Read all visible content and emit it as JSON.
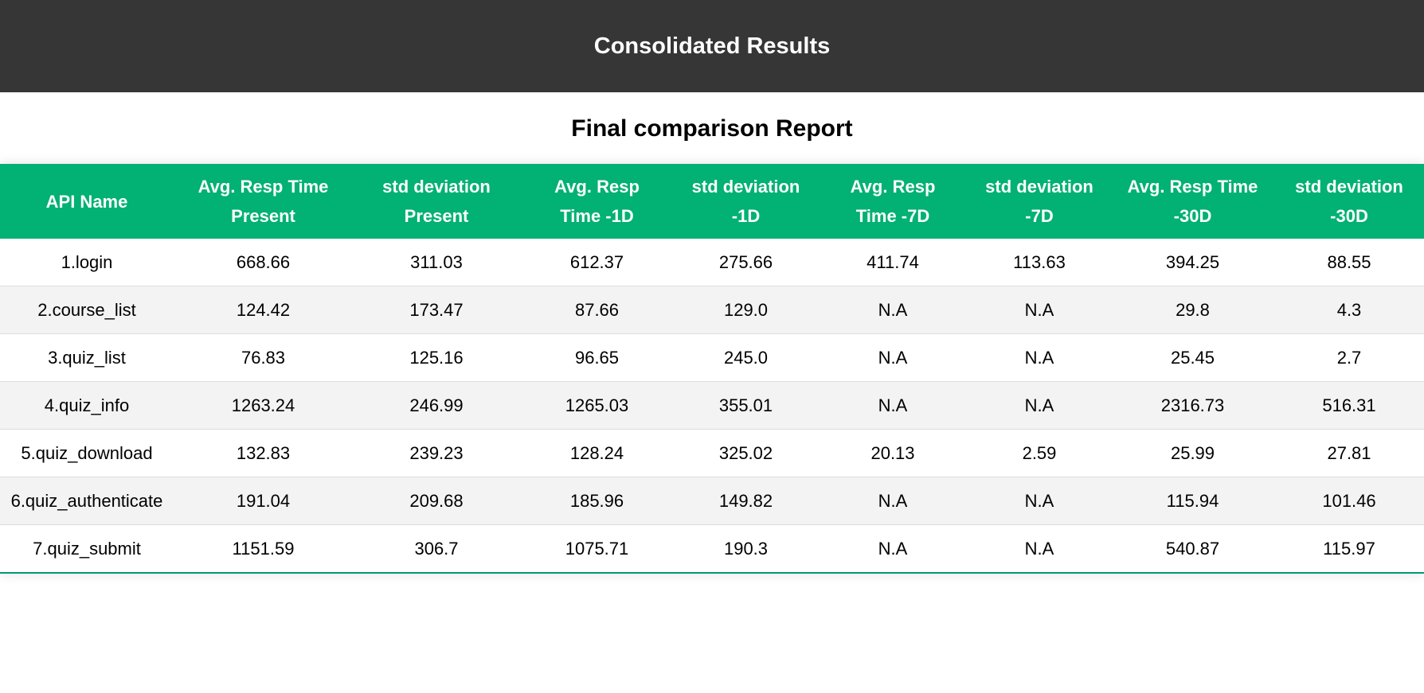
{
  "header": {
    "title": "Consolidated Results"
  },
  "report": {
    "title": "Final comparison Report",
    "columns": [
      [
        "API Name",
        ""
      ],
      [
        "Avg. Resp Time",
        "Present"
      ],
      [
        "std deviation",
        "Present"
      ],
      [
        "Avg. Resp",
        "Time -1D"
      ],
      [
        "std deviation",
        "-1D"
      ],
      [
        "Avg. Resp",
        "Time -7D"
      ],
      [
        "std deviation",
        "-7D"
      ],
      [
        "Avg. Resp Time",
        "-30D"
      ],
      [
        "std deviation",
        "-30D"
      ]
    ],
    "rows": [
      [
        "1.login",
        "668.66",
        "311.03",
        "612.37",
        "275.66",
        "411.74",
        "113.63",
        "394.25",
        "88.55"
      ],
      [
        "2.course_list",
        "124.42",
        "173.47",
        "87.66",
        "129.0",
        "N.A",
        "N.A",
        "29.8",
        "4.3"
      ],
      [
        "3.quiz_list",
        "76.83",
        "125.16",
        "96.65",
        "245.0",
        "N.A",
        "N.A",
        "25.45",
        "2.7"
      ],
      [
        "4.quiz_info",
        "1263.24",
        "246.99",
        "1265.03",
        "355.01",
        "N.A",
        "N.A",
        "2316.73",
        "516.31"
      ],
      [
        "5.quiz_download",
        "132.83",
        "239.23",
        "128.24",
        "325.02",
        "20.13",
        "2.59",
        "25.99",
        "27.81"
      ],
      [
        "6.quiz_authenticate",
        "191.04",
        "209.68",
        "185.96",
        "149.82",
        "N.A",
        "N.A",
        "115.94",
        "101.46"
      ],
      [
        "7.quiz_submit",
        "1151.59",
        "306.7",
        "1075.71",
        "190.3",
        "N.A",
        "N.A",
        "540.87",
        "115.97"
      ]
    ]
  },
  "colors": {
    "header_bg": "#363636",
    "table_header_bg": "#02b174",
    "row_alt_bg": "#f3f3f3"
  }
}
